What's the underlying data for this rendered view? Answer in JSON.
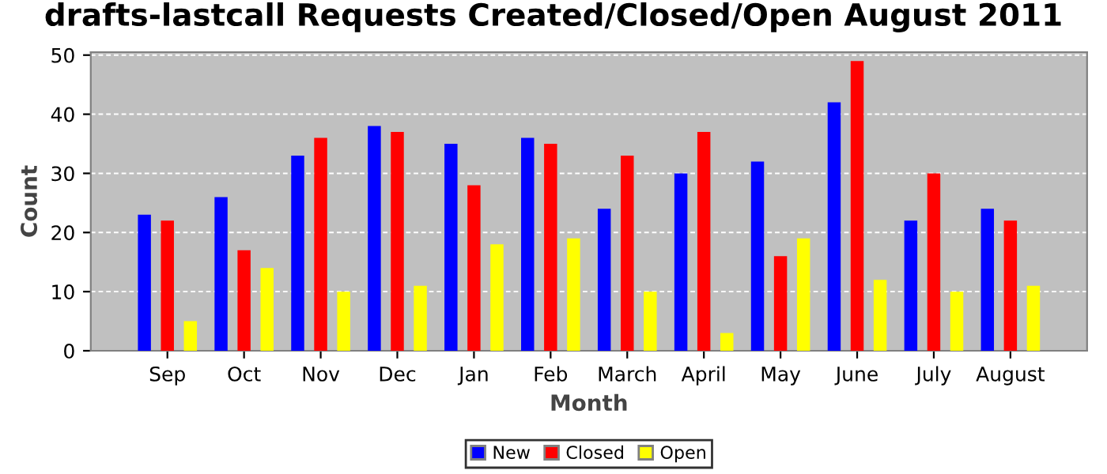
{
  "chart_data": {
    "type": "bar",
    "title": "drafts-lastcall Requests Created/Closed/Open August 2011",
    "xlabel": "Month",
    "ylabel": "Count",
    "categories": [
      "Sep",
      "Oct",
      "Nov",
      "Dec",
      "Jan",
      "Feb",
      "March",
      "April",
      "May",
      "June",
      "July",
      "August"
    ],
    "series": [
      {
        "name": "New",
        "color": "#0000ff",
        "values": [
          23,
          26,
          33,
          38,
          35,
          36,
          24,
          30,
          32,
          42,
          22,
          24
        ]
      },
      {
        "name": "Closed",
        "color": "#ff0000",
        "values": [
          22,
          17,
          36,
          37,
          28,
          35,
          33,
          37,
          16,
          49,
          30,
          22
        ]
      },
      {
        "name": "Open",
        "color": "#ffff00",
        "values": [
          5,
          14,
          10,
          11,
          18,
          19,
          10,
          3,
          19,
          12,
          10,
          11
        ]
      }
    ],
    "ylim": [
      0,
      50.5
    ],
    "yticks": [
      0,
      10,
      20,
      30,
      40,
      50
    ],
    "grid": "y",
    "legend": "bottom"
  }
}
